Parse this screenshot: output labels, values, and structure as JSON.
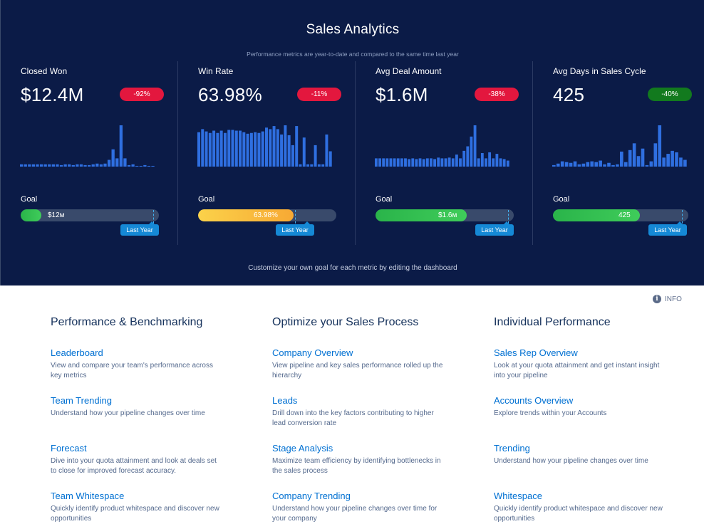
{
  "hero": {
    "title": "Sales Analytics",
    "subtitle": "Performance metrics are year-to-date and compared to the same time last year",
    "footer": "Customize your own goal for each metric by editing the dashboard",
    "goal_label": "Goal",
    "last_year_label": "Last Year"
  },
  "metrics": [
    {
      "label": "Closed Won",
      "value": "$12.4M",
      "change": "-92%",
      "change_status": "negative",
      "goal_text": "$12м",
      "goal_progress": 0.15,
      "last_year_progress": 0.96,
      "fill_color": "green",
      "spark": [
        3,
        3,
        3,
        3,
        3,
        3,
        3,
        3,
        3,
        3,
        2,
        3,
        3,
        2,
        3,
        3,
        2,
        2,
        3,
        4,
        3,
        4,
        9,
        23,
        11,
        55,
        11,
        2,
        3,
        1,
        1,
        2,
        1,
        1
      ]
    },
    {
      "label": "Win Rate",
      "value": "63.98%",
      "change": "-11%",
      "change_status": "negative",
      "goal_text": "63.98%",
      "goal_progress": 0.69,
      "last_year_progress": 0.7,
      "fill_color": "yellow",
      "spark": [
        45,
        49,
        46,
        44,
        47,
        44,
        47,
        44,
        48,
        48,
        47,
        47,
        45,
        43,
        44,
        45,
        44,
        46,
        51,
        49,
        53,
        49,
        42,
        54,
        41,
        28,
        53,
        3,
        38,
        3,
        3,
        28,
        3,
        3,
        42,
        20
      ]
    },
    {
      "label": "Avg Deal Amount",
      "value": "$1.6M",
      "change": "-38%",
      "change_status": "negative",
      "goal_text": "$1.6м",
      "goal_progress": 0.66,
      "last_year_progress": 0.96,
      "fill_color": "green",
      "spark": [
        11,
        11,
        11,
        11,
        11,
        11,
        11,
        11,
        11,
        10,
        11,
        10,
        11,
        10,
        11,
        11,
        10,
        12,
        11,
        11,
        12,
        11,
        16,
        11,
        21,
        27,
        40,
        55,
        11,
        18,
        11,
        19,
        11,
        17,
        11,
        10,
        8
      ]
    },
    {
      "label": "Avg Days in Sales Cycle",
      "value": "425",
      "change": "-40%",
      "change_status": "positive",
      "goal_text": "425",
      "goal_progress": 0.63,
      "last_year_progress": 0.96,
      "fill_color": "green",
      "spark": [
        2,
        4,
        7,
        6,
        5,
        7,
        3,
        4,
        6,
        7,
        6,
        8,
        3,
        5,
        2,
        3,
        20,
        6,
        22,
        31,
        14,
        24,
        2,
        7,
        31,
        55,
        12,
        17,
        21,
        19,
        12,
        9
      ]
    }
  ],
  "info": {
    "label": "INFO"
  },
  "sections": [
    {
      "heading": "Performance & Benchmarking",
      "links": [
        {
          "title": "Leaderboard",
          "desc": "View and compare your team's performance across key metrics"
        },
        {
          "title": "Team Trending",
          "desc": "Understand how your pipeline changes over time"
        },
        {
          "title": "Forecast",
          "desc": "Dive into your quota attainment and look at deals set to close for improved forecast accuracy."
        },
        {
          "title": "Team Whitespace",
          "desc": "Quickly identify product whitespace and discover new opportunities"
        }
      ]
    },
    {
      "heading": "Optimize your Sales Process",
      "links": [
        {
          "title": "Company Overview",
          "desc": "View pipeline and key sales performance rolled up the hierarchy"
        },
        {
          "title": "Leads",
          "desc": "Drill down into the key factors contributing to higher lead conversion rate"
        },
        {
          "title": "Stage Analysis",
          "desc": "Maximize team efficiency by identifying bottlenecks in the sales process"
        },
        {
          "title": "Company Trending",
          "desc": "Understand how your pipeline changes over time for your company"
        }
      ]
    },
    {
      "heading": "Individual Performance",
      "links": [
        {
          "title": "Sales Rep Overview",
          "desc": "Look at your quota attainment and get instant insight into your pipeline"
        },
        {
          "title": "Accounts Overview",
          "desc": "Explore trends within your Accounts"
        },
        {
          "title": "Trending",
          "desc": "Understand how your pipeline changes over time"
        },
        {
          "title": "Whitespace",
          "desc": "Quickly identify product whitespace and discover new opportunities"
        }
      ]
    }
  ],
  "colors": {
    "hero_bg": "#0b1b47",
    "bar": "#2f6fe0",
    "negative": "#e3173e",
    "positive": "#127a1e",
    "link": "#0070d2"
  }
}
